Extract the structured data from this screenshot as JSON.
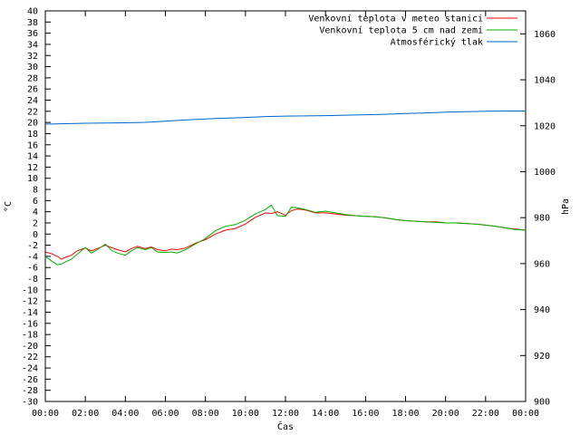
{
  "chart_data": {
    "type": "line",
    "xlabel": "Čas",
    "ylabel": "°C",
    "y2label": "hPa",
    "grid": false,
    "legend_position": "top-right",
    "x_ticks": [
      "00:00",
      "02:00",
      "04:00",
      "06:00",
      "08:00",
      "10:00",
      "12:00",
      "14:00",
      "16:00",
      "18:00",
      "20:00",
      "22:00",
      "00:00"
    ],
    "xlim_hours": [
      0,
      24
    ],
    "ylim": [
      -30,
      40
    ],
    "y_ticks": [
      -30,
      -28,
      -26,
      -24,
      -22,
      -20,
      -18,
      -16,
      -14,
      -12,
      -10,
      -8,
      -6,
      -4,
      -2,
      0,
      2,
      4,
      6,
      8,
      10,
      12,
      14,
      16,
      18,
      20,
      22,
      24,
      26,
      28,
      30,
      32,
      34,
      36,
      38,
      40
    ],
    "y2lim": [
      900,
      1070
    ],
    "y2_ticks": [
      900,
      920,
      940,
      960,
      980,
      1000,
      1020,
      1040,
      1060
    ],
    "series": [
      {
        "name": "Venkovní teplota v meteo stanici",
        "axis": "left",
        "color": "#ff0000",
        "x": [
          0,
          0.3,
          0.6,
          0.8,
          1,
          1.3,
          1.6,
          2,
          2.3,
          2.6,
          3,
          3.3,
          3.6,
          4,
          4.3,
          4.6,
          5,
          5.3,
          5.6,
          6,
          6.3,
          6.6,
          7,
          7.3,
          7.6,
          8,
          8.5,
          9,
          9.5,
          10,
          10.5,
          11,
          11.3,
          11.6,
          12,
          12.3,
          12.6,
          13,
          13.5,
          14,
          14.5,
          15,
          15.5,
          16,
          16.5,
          17,
          17.5,
          18,
          18.5,
          19,
          19.5,
          20,
          20.5,
          21,
          21.5,
          22,
          22.5,
          23,
          23.5,
          24
        ],
        "values": [
          -3.2,
          -3.5,
          -4,
          -4.5,
          -4.2,
          -3.8,
          -3,
          -2.5,
          -3,
          -2.6,
          -2,
          -2.4,
          -2.8,
          -3.2,
          -2.6,
          -2.2,
          -2.6,
          -2.3,
          -2.8,
          -3,
          -2.7,
          -2.8,
          -2.5,
          -2,
          -1.5,
          -1,
          0,
          0.7,
          1,
          1.8,
          3,
          3.8,
          3.7,
          4,
          3.4,
          4.2,
          4.5,
          4.3,
          3.8,
          3.8,
          3.6,
          3.4,
          3.3,
          3.2,
          3.1,
          2.9,
          2.6,
          2.4,
          2.3,
          2.2,
          2.2,
          2,
          2,
          1.9,
          1.8,
          1.6,
          1.4,
          1.1,
          0.9,
          0.7
        ]
      },
      {
        "name": "Venkovní teplota 5 cm nad zemí",
        "axis": "left",
        "color": "#00b000",
        "x": [
          0,
          0.3,
          0.6,
          0.8,
          1,
          1.3,
          1.6,
          2,
          2.3,
          2.6,
          3,
          3.3,
          3.6,
          4,
          4.3,
          4.6,
          5,
          5.3,
          5.6,
          6,
          6.3,
          6.6,
          7,
          7.3,
          7.6,
          8,
          8.5,
          9,
          9.5,
          10,
          10.5,
          11,
          11.3,
          11.6,
          12,
          12.3,
          12.6,
          13,
          13.5,
          14,
          14.5,
          15,
          15.5,
          16,
          16.5,
          17,
          17.5,
          18,
          18.5,
          19,
          19.5,
          20,
          20.5,
          21,
          21.5,
          22,
          22.5,
          23,
          23.5,
          24
        ],
        "values": [
          -4,
          -4.8,
          -5.5,
          -5.4,
          -5,
          -4.5,
          -3.6,
          -2.4,
          -3.4,
          -2.8,
          -1.8,
          -2.9,
          -3.4,
          -3.8,
          -3,
          -2.4,
          -2.8,
          -2.4,
          -3.2,
          -3.3,
          -3.2,
          -3.4,
          -2.8,
          -2.2,
          -1.6,
          -0.8,
          0.6,
          1.4,
          1.7,
          2.5,
          3.6,
          4.4,
          5.2,
          3.3,
          3.2,
          4.8,
          4.7,
          4.4,
          3.9,
          4.1,
          3.8,
          3.5,
          3.3,
          3.2,
          3.1,
          2.9,
          2.6,
          2.4,
          2.3,
          2.2,
          2.1,
          2,
          2,
          1.9,
          1.8,
          1.6,
          1.4,
          1.1,
          0.8,
          0.7
        ]
      },
      {
        "name": "Atmosférický tlak",
        "axis": "right",
        "color": "#0066cc",
        "x": [
          0,
          1,
          2,
          3,
          4,
          5,
          6,
          7,
          8,
          9,
          10,
          11,
          12,
          13,
          14,
          15,
          16,
          17,
          18,
          19,
          20,
          21,
          22,
          23,
          24
        ],
        "values": [
          1020.7,
          1020.9,
          1021.1,
          1021.2,
          1021.3,
          1021.5,
          1022,
          1022.5,
          1023,
          1023.3,
          1023.6,
          1024,
          1024.2,
          1024.3,
          1024.4,
          1024.6,
          1024.8,
          1025,
          1025.3,
          1025.6,
          1025.9,
          1026.1,
          1026.3,
          1026.4,
          1026.4
        ]
      }
    ]
  }
}
